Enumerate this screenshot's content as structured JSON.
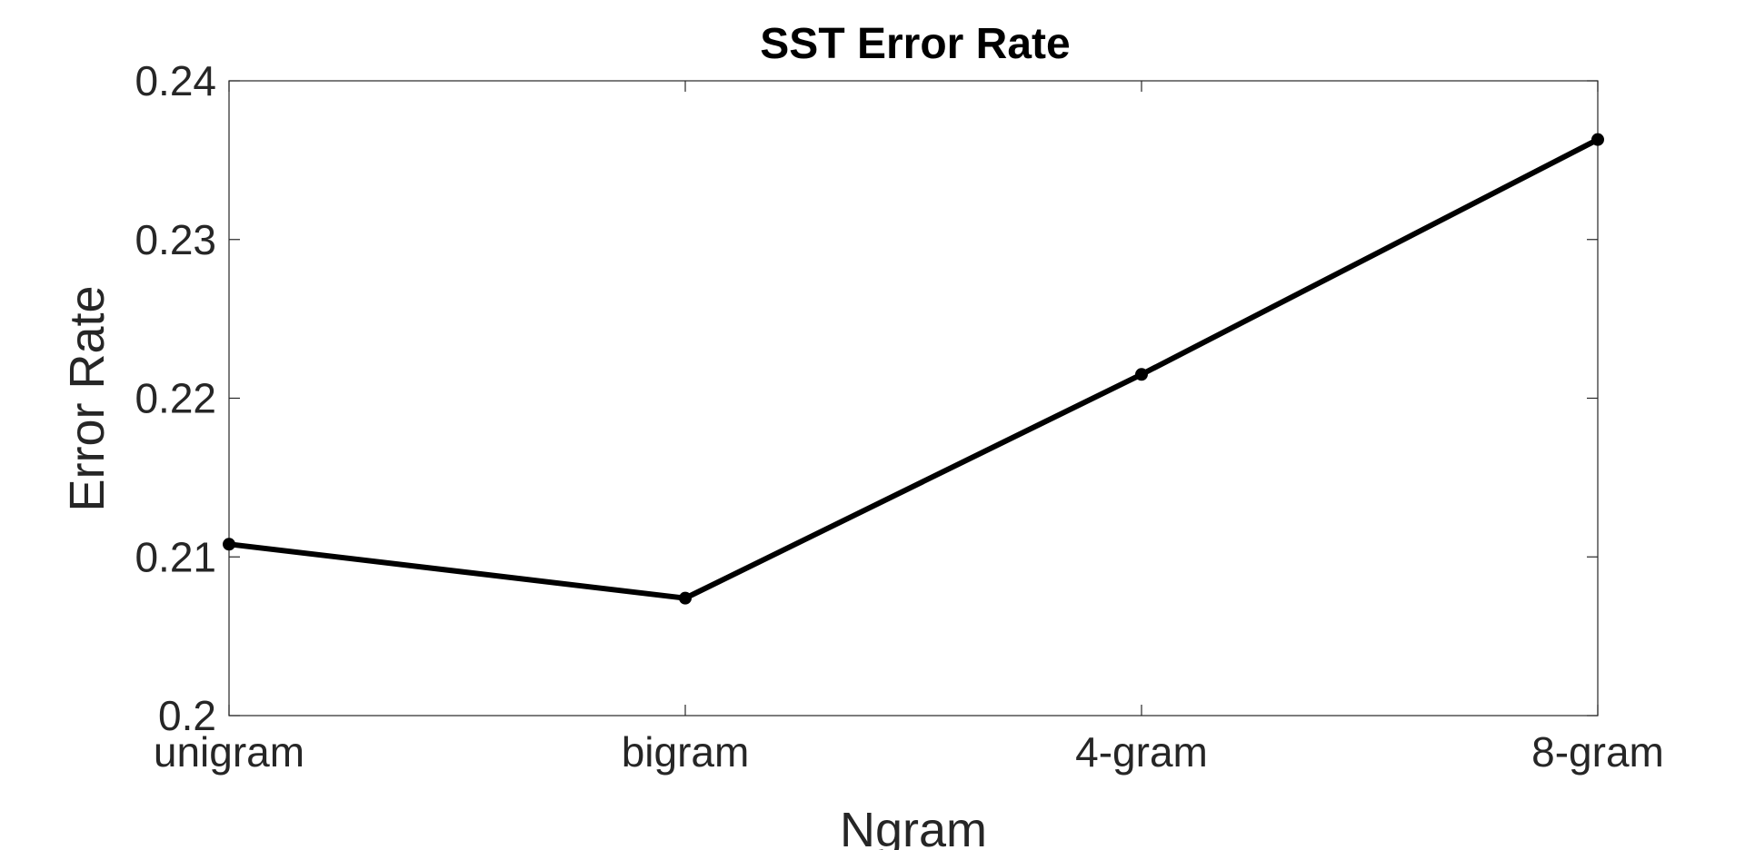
{
  "chart_data": {
    "type": "line",
    "title": "SST Error Rate",
    "xlabel": "Ngram",
    "ylabel": "Error Rate",
    "categories": [
      "unigram",
      "bigram",
      "4-gram",
      "8-gram"
    ],
    "series": [
      {
        "values": [
          0.2108,
          0.2074,
          0.2215,
          0.2363
        ],
        "color": "#000000",
        "marker": "circle"
      }
    ],
    "ylim": [
      0.2,
      0.24
    ],
    "yticks": [
      0.2,
      0.21,
      0.22,
      0.23,
      0.24
    ],
    "ytick_labels": [
      "0.2",
      "0.21",
      "0.22",
      "0.23",
      "0.24"
    ],
    "grid": false,
    "box": true
  }
}
